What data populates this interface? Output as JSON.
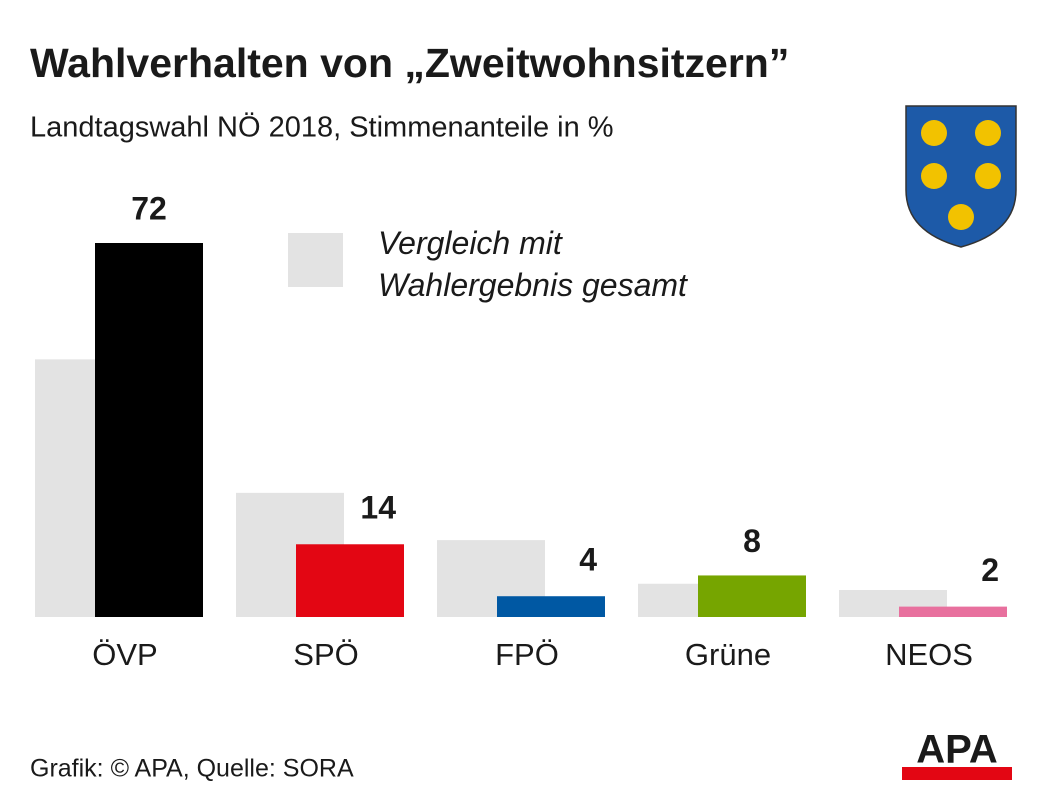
{
  "chart_data": {
    "type": "bar",
    "title": "Wahlverhalten von „Zweitwohnsitzern”",
    "subtitle": "Landtagswahl NÖ 2018, Stimmenanteile in %",
    "categories": [
      "ÖVP",
      "SPÖ",
      "FPÖ",
      "Grüne",
      "NEOS"
    ],
    "series": [
      {
        "name": "Vergleich mit Wahlergebnis gesamt",
        "color": "#e3e3e3",
        "values": [
          49.6,
          23.9,
          14.8,
          6.4,
          5.2
        ]
      },
      {
        "colors": [
          "#000000",
          "#e30613",
          "#0058a3",
          "#76a500",
          "#e8709e"
        ],
        "values": [
          72,
          14,
          4,
          8,
          2
        ]
      }
    ],
    "ylim": [
      0,
      72
    ],
    "footer": "Grafik: © APA, Quelle: SORA",
    "logo": "APA"
  }
}
